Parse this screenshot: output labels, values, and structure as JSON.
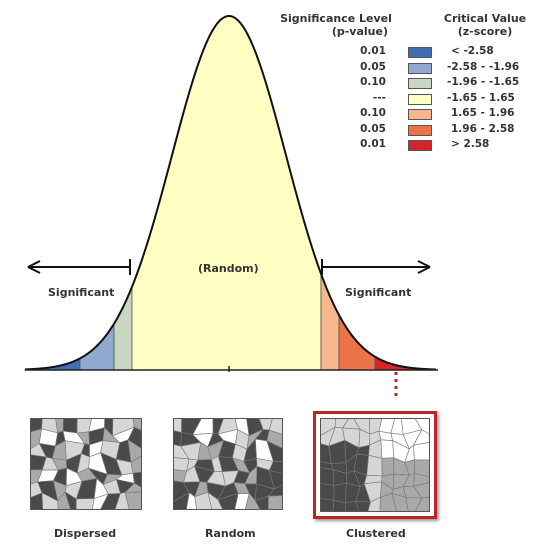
{
  "legend": {
    "significance_header_line1": "Significance Level",
    "significance_header_line2": "(p-value)",
    "critical_header_line1": "Critical Value",
    "critical_header_line2": "(z-score)",
    "rows": [
      {
        "p": "0.01",
        "z": "< -2.58",
        "color": "#3f6fb0"
      },
      {
        "p": "0.05",
        "z": "-2.58 - -1.96",
        "color": "#91a9cf"
      },
      {
        "p": "0.10",
        "z": "-1.96 - -1.65",
        "color": "#c9d6c1"
      },
      {
        "p": "---",
        "z": "-1.65 - 1.65",
        "color": "#ffffc4"
      },
      {
        "p": "0.10",
        "z": "1.65 - 1.96",
        "color": "#f7b78a"
      },
      {
        "p": "0.05",
        "z": "1.96 - 2.58",
        "color": "#ec7348"
      },
      {
        "p": "0.01",
        "z": "> 2.58",
        "color": "#d5242a"
      }
    ]
  },
  "curve": {
    "random_label": "(Random)",
    "left_label": "Significant",
    "right_label": "Significant"
  },
  "maps": [
    {
      "label": "Dispersed"
    },
    {
      "label": "Random"
    },
    {
      "label": "Clustered"
    }
  ],
  "colors": {
    "highlight_border": "#b8262a",
    "dark_poly": "#4a4a4a",
    "mid_poly": "#a9a9a9",
    "light_poly": "#d6d6d6"
  }
}
